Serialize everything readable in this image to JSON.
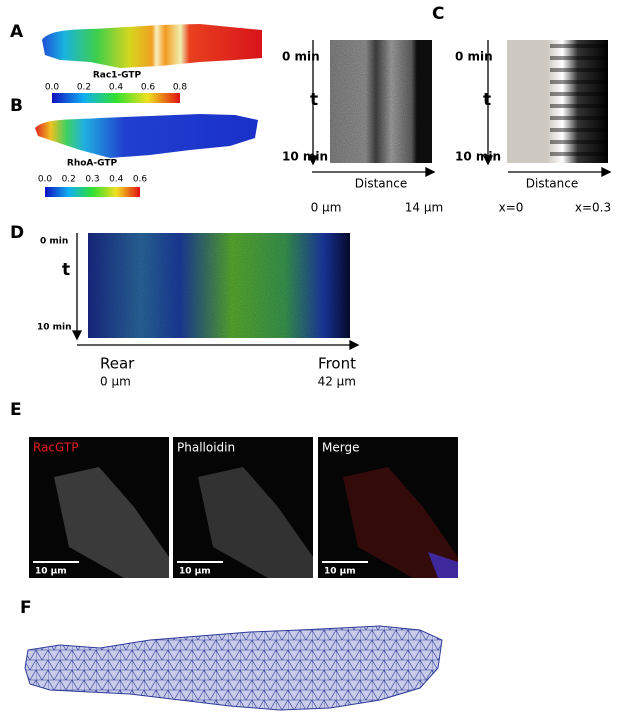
{
  "panels": {
    "a": {
      "label": "A",
      "colorbar_title": "Rac1-GTP",
      "colorbar_ticks": [
        "0.0",
        "0.2",
        "0.4",
        "0.6",
        "0.8"
      ]
    },
    "b": {
      "label": "B",
      "colorbar_title": "RhoA-GTP",
      "colorbar_ticks": [
        "0.0",
        "0.2",
        "0.3",
        "0.4",
        "0.6"
      ]
    },
    "c": {
      "label": "C",
      "kymograph": {
        "time_start": "0 min",
        "time_axis": "t",
        "time_end": "10 min",
        "distance_axis": "Distance",
        "distance_start": "0 µm",
        "distance_end": "14 µm"
      },
      "simulation": {
        "time_start": "0 min",
        "time_axis": "t",
        "time_end": "10 min",
        "distance_axis": "Distance",
        "distance_start": "x=0",
        "distance_end": "x=0.3"
      }
    },
    "d": {
      "label": "D",
      "time_start": "0 min",
      "time_axis": "t",
      "time_end": "10 min",
      "position_start": "Rear",
      "position_end": "Front",
      "distance_start": "0 µm",
      "distance_end": "42 µm"
    },
    "e": {
      "label": "E",
      "images": [
        {
          "title": "RacGTP",
          "scale_bar": "10 µm"
        },
        {
          "title": "Phalloidin",
          "scale_bar": "10 µm"
        },
        {
          "title": "Merge",
          "scale_bar": "10 µm"
        }
      ]
    },
    "f": {
      "label": "F"
    }
  }
}
